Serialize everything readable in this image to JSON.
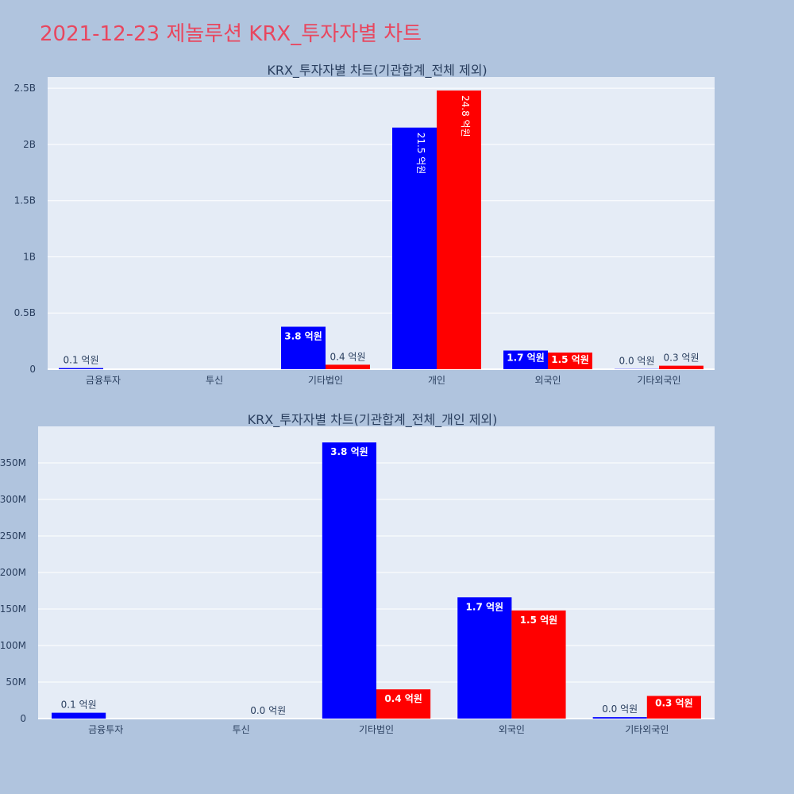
{
  "page": {
    "title": "2021-12-23 제놀루션 KRX_투자자별 차트"
  },
  "colors": {
    "background": "#b0c4de",
    "plot_bg": "#e5ecf6",
    "series1": "#0000ff",
    "series2": "#ff0000",
    "title": "#e8475f"
  },
  "chart_data": [
    {
      "type": "bar",
      "title": "KRX_투자자별 차트(기관합계_전체 제외)",
      "categories": [
        "금융투자",
        "투신",
        "기타법인",
        "개인",
        "외국인",
        "기타외국인"
      ],
      "ylim": [
        0,
        2600000000
      ],
      "ytick_values": [
        0,
        500000000,
        1000000000,
        1500000000,
        2000000000,
        2500000000
      ],
      "ytick_labels": [
        "0",
        "0.5B",
        "1B",
        "1.5B",
        "2B",
        "2.5B"
      ],
      "grid": true,
      "series": [
        {
          "color": "#0000ff",
          "values": [
            10000000,
            0,
            378000000,
            2150000000,
            166000000,
            2000000
          ],
          "labels": [
            "0.1 억원",
            "",
            "3.8 억원",
            "21.5 억원",
            "1.7 억원",
            "0.0 억원"
          ]
        },
        {
          "color": "#ff0000",
          "values": [
            0,
            0,
            40000000,
            2480000000,
            148000000,
            31000000
          ],
          "labels": [
            "",
            "",
            "0.4 억원",
            "24.8 억원",
            "1.5 억원",
            "0.3 억원"
          ]
        }
      ]
    },
    {
      "type": "bar",
      "title": "KRX_투자자별 차트(기관합계_전체_개인 제외)",
      "categories": [
        "금융투자",
        "투신",
        "기타법인",
        "외국인",
        "기타외국인"
      ],
      "ylim": [
        0,
        400000000
      ],
      "ytick_values": [
        0,
        50000000,
        100000000,
        150000000,
        200000000,
        250000000,
        300000000,
        350000000
      ],
      "ytick_labels": [
        "0",
        "50M",
        "100M",
        "150M",
        "200M",
        "250M",
        "300M",
        "350M"
      ],
      "grid": true,
      "series": [
        {
          "color": "#0000ff",
          "values": [
            8000000,
            0,
            378000000,
            166000000,
            2000000
          ],
          "labels": [
            "0.1 억원",
            "",
            "3.8 억원",
            "1.7 억원",
            "0.0 억원"
          ]
        },
        {
          "color": "#ff0000",
          "values": [
            0,
            0,
            40000000,
            148000000,
            31000000
          ],
          "labels": [
            "",
            "0.0 억원",
            "0.4 억원",
            "1.5 억원",
            "0.3 억원"
          ]
        }
      ]
    }
  ]
}
